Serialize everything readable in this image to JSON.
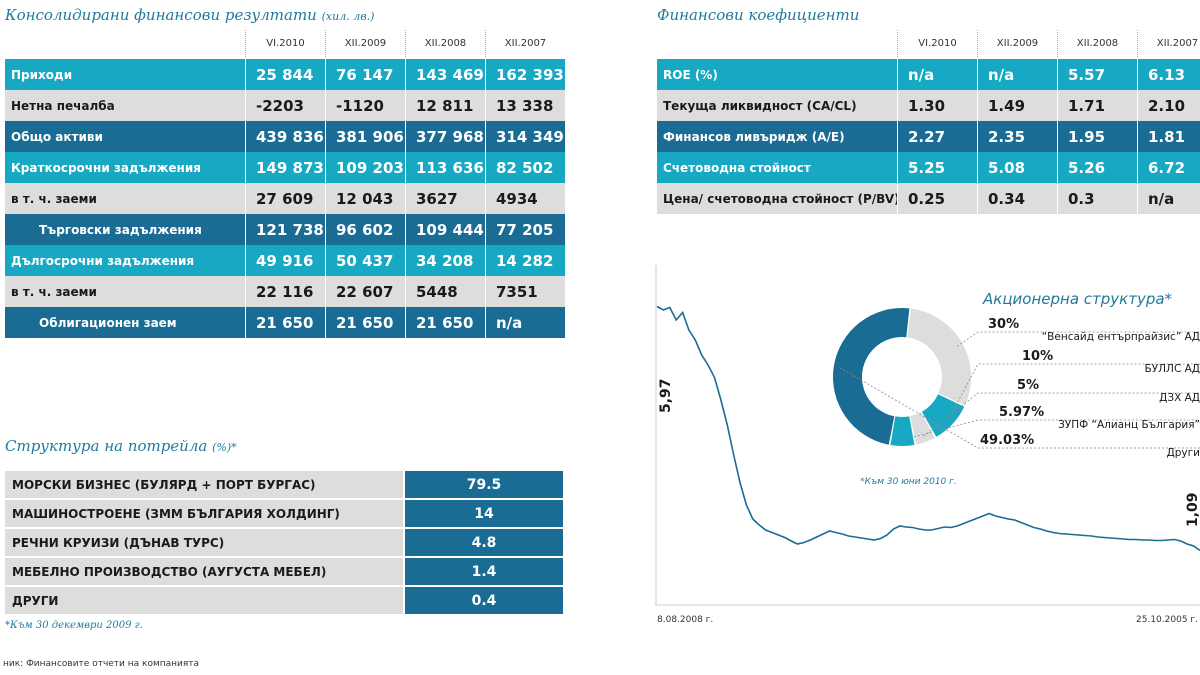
{
  "financial_results": {
    "title": "Консолидирани финансови резултати",
    "unit": "(хил. лв.)",
    "columns": [
      "VI.2010",
      "XII.2009",
      "XII.2008",
      "XII.2007"
    ],
    "rows": [
      {
        "label": "Приходи",
        "values": [
          "25 844",
          "76 147",
          "143 469",
          "162 393"
        ],
        "style": "teal",
        "indent": false
      },
      {
        "label": "Нетна печалба",
        "values": [
          "-2203",
          "-1120",
          "12 811",
          "13 338"
        ],
        "style": "grey",
        "indent": false
      },
      {
        "label": "Общо активи",
        "values": [
          "439 836",
          "381 906",
          "377 968",
          "314 349"
        ],
        "style": "blue",
        "indent": false
      },
      {
        "label": "Краткосрочни задължения",
        "values": [
          "149 873",
          "109 203",
          "113 636",
          "82 502"
        ],
        "style": "teal",
        "indent": false
      },
      {
        "label": "в т. ч. заеми",
        "values": [
          "27 609",
          "12 043",
          "3627",
          "4934"
        ],
        "style": "grey",
        "indent": false
      },
      {
        "label": "Търговски задължения",
        "values": [
          "121 738",
          "96 602",
          "109 444",
          "77 205"
        ],
        "style": "blue",
        "indent": true
      },
      {
        "label": "Дългосрочни задължения",
        "values": [
          "49 916",
          "50 437",
          "34 208",
          "14 282"
        ],
        "style": "teal",
        "indent": false
      },
      {
        "label": "в т. ч. заеми",
        "values": [
          "22 116",
          "22 607",
          "5448",
          "7351"
        ],
        "style": "grey",
        "indent": false
      },
      {
        "label": "Облигационен заем",
        "values": [
          "21 650",
          "21 650",
          "21 650",
          "n/a"
        ],
        "style": "blue",
        "indent": true
      }
    ]
  },
  "financial_ratios": {
    "title": "Финансови коефициенти",
    "columns": [
      "VI.2010",
      "XII.2009",
      "XII.2008",
      "XII.2007"
    ],
    "rows": [
      {
        "label": "ROE (%)",
        "values": [
          "n/a",
          "n/a",
          "5.57",
          "6.13"
        ],
        "style": "teal"
      },
      {
        "label": "Текуща ликвидност (CA/CL)",
        "values": [
          "1.30",
          "1.49",
          "1.71",
          "2.10"
        ],
        "style": "grey"
      },
      {
        "label": "Финансов ливъридж (A/E)",
        "values": [
          "2.27",
          "2.35",
          "1.95",
          "1.81"
        ],
        "style": "blue"
      },
      {
        "label": "Счетоводна стойност",
        "values": [
          "5.25",
          "5.08",
          "5.26",
          "6.72"
        ],
        "style": "teal"
      },
      {
        "label": "Цена/ счетоводна стойност (P/BV)",
        "values": [
          "0.25",
          "0.34",
          "0.3",
          "n/a"
        ],
        "style": "grey"
      }
    ]
  },
  "portfolio": {
    "title": "Структура на потрейла",
    "unit": "(%)*",
    "rows": [
      {
        "label": "МОРСКИ БИЗНЕС (БУЛЯРД + ПОРТ БУРГАС)",
        "value": "79.5"
      },
      {
        "label": "МАШИНОСТРОЕНЕ (ЗММ БЪЛГАРИЯ ХОЛДИНГ)",
        "value": "14"
      },
      {
        "label": "РЕЧНИ КРУИЗИ (ДЪНАВ ТУРС)",
        "value": "4.8"
      },
      {
        "label": "МЕБЕЛНО ПРОИЗВОДСТВО (АУГУСТА МЕБЕЛ)",
        "value": "1.4"
      },
      {
        "label": "ДРУГИ",
        "value": "0.4"
      }
    ],
    "note": "*Към 30 декември 2009 г."
  },
  "source": "ник: Финансовите отчети на компанията",
  "colors": {
    "teal": "#17a9c4",
    "grey": "#dddddd",
    "blue": "#1a6c95",
    "title": "#1f7a9c",
    "line": "#1a6c95"
  },
  "chart_data": [
    {
      "type": "line",
      "title": "",
      "x_start_label": "8.08.2008 г.",
      "x_end_label": "25.10.2005 г.",
      "first_value_label": "5,97",
      "last_value_label": "1,09",
      "ylim": [
        0,
        6.8
      ],
      "values": [
        5.97,
        5.9,
        5.95,
        5.7,
        5.85,
        5.5,
        5.3,
        5.0,
        4.8,
        4.55,
        4.1,
        3.6,
        3.0,
        2.45,
        2.0,
        1.72,
        1.6,
        1.5,
        1.45,
        1.4,
        1.35,
        1.28,
        1.22,
        1.25,
        1.3,
        1.36,
        1.42,
        1.48,
        1.45,
        1.42,
        1.38,
        1.36,
        1.34,
        1.32,
        1.3,
        1.33,
        1.4,
        1.52,
        1.58,
        1.56,
        1.55,
        1.52,
        1.5,
        1.5,
        1.53,
        1.56,
        1.55,
        1.58,
        1.63,
        1.68,
        1.73,
        1.78,
        1.83,
        1.78,
        1.75,
        1.72,
        1.7,
        1.65,
        1.6,
        1.55,
        1.52,
        1.48,
        1.45,
        1.43,
        1.42,
        1.41,
        1.4,
        1.39,
        1.38,
        1.36,
        1.35,
        1.34,
        1.33,
        1.32,
        1.31,
        1.31,
        1.3,
        1.3,
        1.29,
        1.29,
        1.3,
        1.31,
        1.28,
        1.22,
        1.18,
        1.09
      ]
    },
    {
      "type": "pie",
      "title": "Акционерна структура*",
      "note": "*Към 30 юни 2010 г.",
      "slices": [
        {
          "label": "“Венсайд ентърпрайзис” АД",
          "value": 30,
          "value_label": "30%",
          "color": "#dddddd"
        },
        {
          "label": "БУЛЛС АД",
          "value": 10,
          "value_label": "10%",
          "color": "#17a9c4"
        },
        {
          "label": "ДЗХ АД",
          "value": 5,
          "value_label": "5%",
          "color": "#dddddd"
        },
        {
          "label": "ЗУПФ “Алианц България”",
          "value": 5.97,
          "value_label": "5.97%",
          "color": "#17a9c4"
        },
        {
          "label": "Други",
          "value": 49.03,
          "value_label": "49.03%",
          "color": "#1a6c95"
        }
      ]
    }
  ]
}
